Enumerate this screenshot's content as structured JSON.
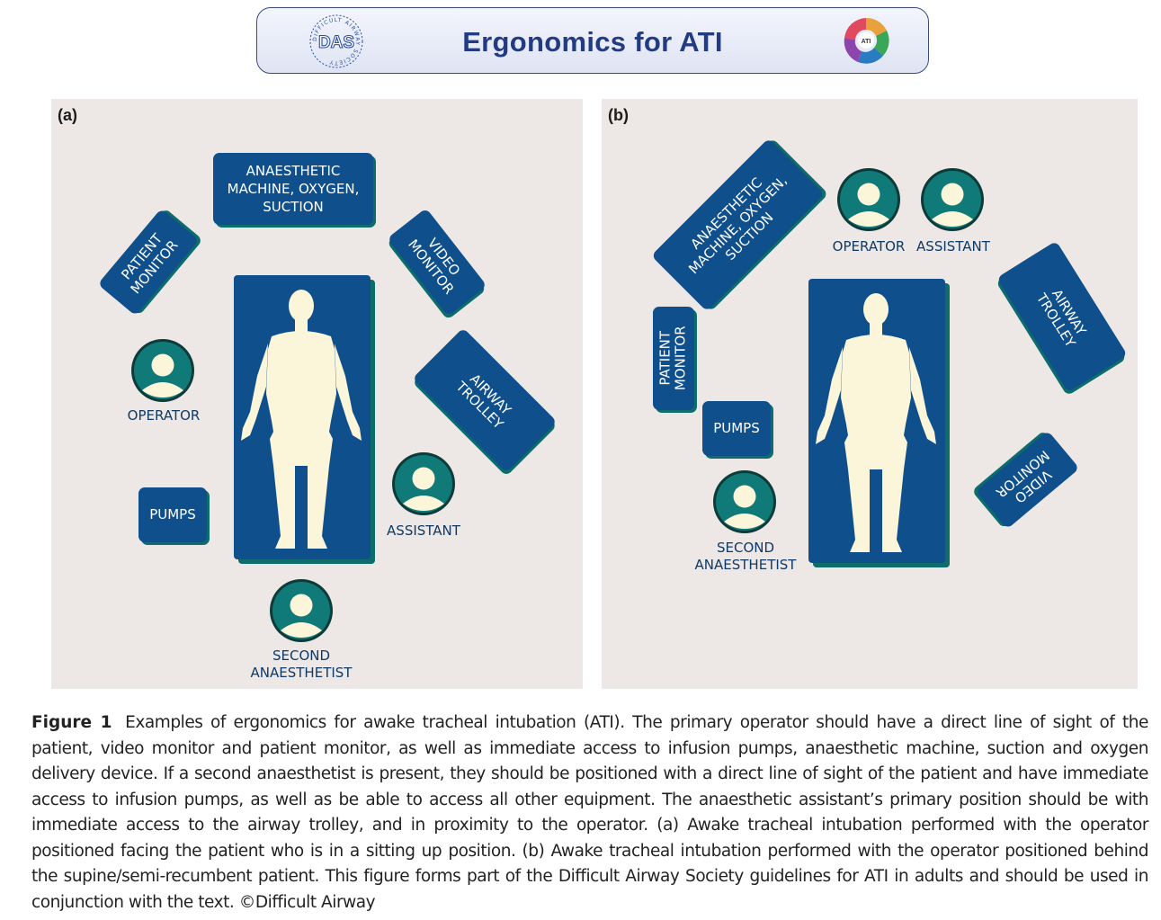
{
  "header": {
    "title": "Ergonomics for ATI",
    "das_logo_text": "DAS",
    "das_logo_ring": "DIFFICULT AIRWAY SOCIETY",
    "ati_logo_text": "ATI"
  },
  "colors": {
    "box_blue": "#0e4f8c",
    "teal": "#0d6d6a",
    "patient_body": "#fbf5da",
    "panel_bg": "#ede8e6",
    "header_title": "#233b82"
  },
  "panel_a": {
    "label": "(a)",
    "anaesthetic": "ANAESTHETIC\nMACHINE, OXYGEN,\nSUCTION",
    "patient_monitor": "PATIENT\nMONITOR",
    "video_monitor": "VIDEO\nMONITOR",
    "airway_trolley": "AIRWAY\nTROLLEY",
    "pumps": "PUMPS",
    "patient": "PATIENT",
    "operator": "OPERATOR",
    "assistant": "ASSISTANT",
    "second_anaesthetist": "SECOND\nANAESTHETIST"
  },
  "panel_b": {
    "label": "(b)",
    "anaesthetic": "ANAESTHETIC\nMACHINE, OXYGEN,\nSUCTION",
    "patient_monitor": "PATIENT\nMONITOR",
    "video_monitor": "VIDEO\nMONITOR",
    "airway_trolley": "AIRWAY\nTROLLEY",
    "pumps": "PUMPS",
    "patient": "PATIENT",
    "operator": "OPERATOR",
    "assistant": "ASSISTANT",
    "second_anaesthetist": "SECOND\nANAESTHETIST"
  },
  "caption": {
    "label": "Figure 1",
    "text": "Examples of ergonomics for awake tracheal intubation (ATI). The primary operator should have a direct line of sight of the patient, video monitor and patient monitor, as well as immediate access to infusion pumps, anaesthetic machine, suction and oxygen delivery device. If a second anaesthetist is present, they should be positioned with a direct line of sight of the patient and have immediate access to infusion pumps, as well as be able to access all other equipment. The anaesthetic assistant’s primary position should be with immediate access to the airway trolley, and in proximity to the operator. (a) Awake tracheal intubation performed with the operator positioned facing the patient who is in a sitting up position. (b) Awake tracheal intubation performed with the operator positioned behind the supine/semi-recumbent patient. This figure forms part of the Difficult Airway Society guidelines for ATI in adults and should be used in conjunction with the text. ©Difficult Airway"
  }
}
